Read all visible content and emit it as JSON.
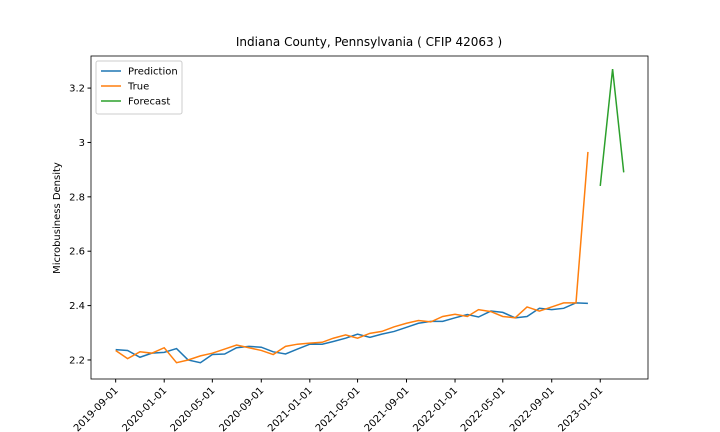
{
  "chart_data": {
    "type": "line",
    "title": "Indiana County, Pennsylvania ( CFIP 42063 )",
    "y_label": "Microbusiness Density",
    "x": [
      "2019-09-01",
      "2019-10-01",
      "2019-11-01",
      "2019-12-01",
      "2020-01-01",
      "2020-02-01",
      "2020-03-01",
      "2020-04-01",
      "2020-05-01",
      "2020-06-01",
      "2020-07-01",
      "2020-08-01",
      "2020-09-01",
      "2020-10-01",
      "2020-11-01",
      "2020-12-01",
      "2021-01-01",
      "2021-02-01",
      "2021-03-01",
      "2021-04-01",
      "2021-05-01",
      "2021-06-01",
      "2021-07-01",
      "2021-08-01",
      "2021-09-01",
      "2021-10-01",
      "2021-11-01",
      "2021-12-01",
      "2022-01-01",
      "2022-02-01",
      "2022-03-01",
      "2022-04-01",
      "2022-05-01",
      "2022-06-01",
      "2022-07-01",
      "2022-08-01",
      "2022-09-01",
      "2022-10-01",
      "2022-11-01",
      "2022-12-01",
      "2023-01-01",
      "2023-02-01",
      "2023-03-01"
    ],
    "series": [
      {
        "name": "Prediction",
        "color": "#1f77b4",
        "values": [
          2.238,
          2.235,
          2.21,
          2.225,
          2.228,
          2.242,
          2.2,
          2.19,
          2.22,
          2.222,
          2.245,
          2.25,
          2.247,
          2.23,
          2.222,
          2.24,
          2.258,
          2.258,
          2.268,
          2.28,
          2.295,
          2.283,
          2.295,
          2.305,
          2.32,
          2.335,
          2.342,
          2.342,
          2.355,
          2.367,
          2.358,
          2.38,
          2.375,
          2.355,
          2.36,
          2.39,
          2.385,
          2.39,
          2.41,
          2.408,
          null,
          null,
          null
        ]
      },
      {
        "name": "True",
        "color": "#ff7f0e",
        "values": [
          2.235,
          2.205,
          2.23,
          2.225,
          2.245,
          2.19,
          2.2,
          2.215,
          2.225,
          2.24,
          2.255,
          2.245,
          2.235,
          2.22,
          2.25,
          2.258,
          2.262,
          2.265,
          2.28,
          2.292,
          2.28,
          2.298,
          2.305,
          2.322,
          2.335,
          2.345,
          2.34,
          2.36,
          2.368,
          2.36,
          2.385,
          2.378,
          2.36,
          2.355,
          2.395,
          2.38,
          2.395,
          2.41,
          2.41,
          2.965,
          null,
          null,
          null
        ]
      },
      {
        "name": "Forecast",
        "color": "#2ca02c",
        "values": [
          null,
          null,
          null,
          null,
          null,
          null,
          null,
          null,
          null,
          null,
          null,
          null,
          null,
          null,
          null,
          null,
          null,
          null,
          null,
          null,
          null,
          null,
          null,
          null,
          null,
          null,
          null,
          null,
          null,
          null,
          null,
          null,
          null,
          null,
          null,
          null,
          null,
          null,
          null,
          null,
          2.84,
          3.27,
          2.89
        ]
      }
    ],
    "xlim": [
      "2019-07-01",
      "2023-05-01"
    ],
    "xticks": [
      "2019-09-01",
      "2020-01-01",
      "2020-05-01",
      "2020-09-01",
      "2021-01-01",
      "2021-05-01",
      "2021-09-01",
      "2022-01-01",
      "2022-05-01",
      "2022-09-01",
      "2023-01-01"
    ],
    "ylim": [
      2.13,
      3.318
    ],
    "yticks": [
      2.2,
      2.4,
      2.6,
      2.8,
      3.0,
      3.2
    ],
    "grid": false,
    "legend": "upper-left"
  }
}
